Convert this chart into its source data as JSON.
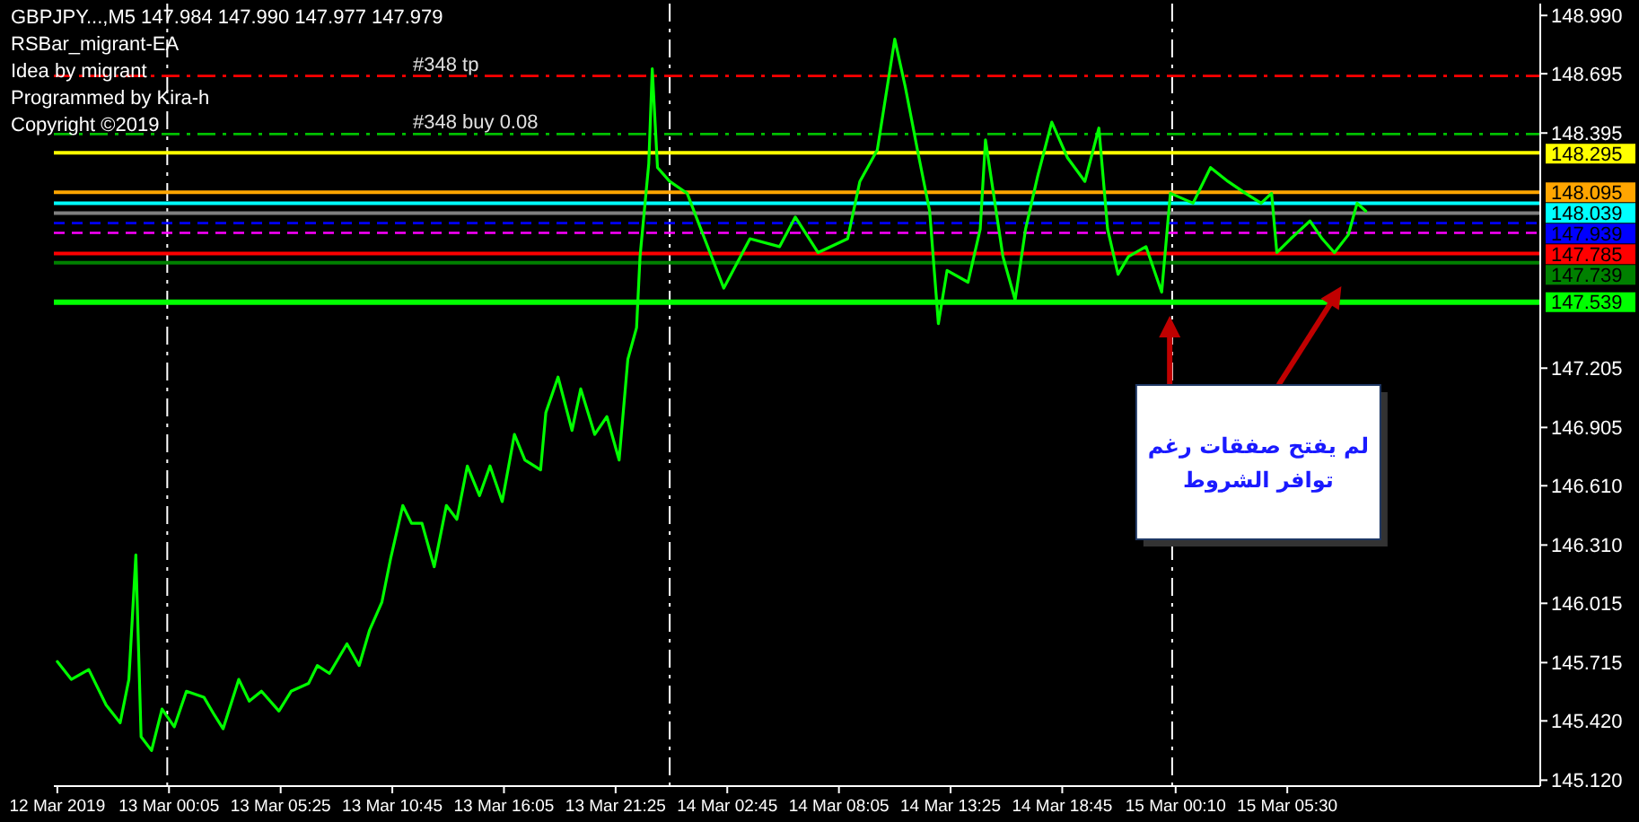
{
  "chart_data": {
    "type": "line",
    "title": "GBPJPY...,M5  147.984 147.990 147.977 147.979",
    "annotations": [
      "RSBar_migrant-EA",
      "Idea by migrant",
      "Programmed by Kira-h",
      "Copyright ©2019",
      "لم يفتح صفقات رغم توافر الشروط"
    ],
    "xlim": [
      "2019-03-12T18:35",
      "2019-03-15T17:35"
    ],
    "xticks": [
      {
        "value": "2019-03-12T18:45",
        "label": "12 Mar 2019"
      },
      {
        "value": "2019-03-13T00:05",
        "label": "13 Mar 00:05"
      },
      {
        "value": "2019-03-13T05:25",
        "label": "13 Mar 05:25"
      },
      {
        "value": "2019-03-13T10:45",
        "label": "13 Mar 10:45"
      },
      {
        "value": "2019-03-13T16:05",
        "label": "13 Mar 16:05"
      },
      {
        "value": "2019-03-13T21:25",
        "label": "13 Mar 21:25"
      },
      {
        "value": "2019-03-14T02:45",
        "label": "14 Mar 02:45"
      },
      {
        "value": "2019-03-14T08:05",
        "label": "14 Mar 08:05"
      },
      {
        "value": "2019-03-14T13:25",
        "label": "14 Mar 13:25"
      },
      {
        "value": "2019-03-14T18:45",
        "label": "14 Mar 18:45"
      },
      {
        "value": "2019-03-15T00:10",
        "label": "15 Mar 00:10"
      },
      {
        "value": "2019-03-15T05:30",
        "label": "15 Mar 05:30"
      }
    ],
    "ylim": [
      145.09,
      149.05
    ],
    "yticks": [
      {
        "value": 148.99,
        "label": "148.990"
      },
      {
        "value": 148.695,
        "label": "148.695"
      },
      {
        "value": 148.395,
        "label": "148.395"
      },
      {
        "value": 147.205,
        "label": "147.205"
      },
      {
        "value": 146.905,
        "label": "146.905"
      },
      {
        "value": 146.61,
        "label": "146.610"
      },
      {
        "value": 146.31,
        "label": "146.310"
      },
      {
        "value": 146.015,
        "label": "146.015"
      },
      {
        "value": 145.715,
        "label": "145.715"
      },
      {
        "value": 145.42,
        "label": "145.420"
      },
      {
        "value": 145.12,
        "label": "145.120"
      }
    ],
    "ref_lines": [
      {
        "axis": "x",
        "value": "2019-03-13T00:00",
        "color": "#ffffff",
        "line_style": "dotted"
      },
      {
        "axis": "x",
        "value": "2019-03-14T00:00",
        "color": "#ffffff",
        "line_style": "dotted"
      },
      {
        "axis": "x",
        "value": "2019-03-15T00:00",
        "color": "#ffffff",
        "line_style": "dotted"
      },
      {
        "axis": "y",
        "value": 148.684,
        "label": "#348 tp",
        "color": "#ff0000",
        "line_style": "dotted"
      },
      {
        "axis": "y",
        "value": 148.39,
        "label": "#348 buy 0.08",
        "color": "#00c000",
        "line_style": "dotted"
      },
      {
        "axis": "y",
        "value": 148.295,
        "label": "148.295",
        "color": "#ffff00",
        "line_style": "solid"
      },
      {
        "axis": "y",
        "value": 148.095,
        "label": "148.095",
        "color": "#ffa500",
        "line_style": "solid"
      },
      {
        "axis": "y",
        "value": 148.039,
        "label": "148.039",
        "color": "#00ffff",
        "line_style": "solid"
      },
      {
        "axis": "y",
        "value": 147.99,
        "color": "#808080",
        "line_style": "solid"
      },
      {
        "axis": "y",
        "value": 147.939,
        "label": "147.939",
        "color": "#0000ff",
        "line_style": "dashed"
      },
      {
        "axis": "y",
        "value": 147.89,
        "color": "#ff00ff",
        "line_style": "dashed"
      },
      {
        "axis": "y",
        "value": 147.785,
        "label": "147.785",
        "color": "#ff0000",
        "line_style": "solid"
      },
      {
        "axis": "y",
        "value": 147.739,
        "label": "147.739",
        "color": "#008000",
        "line_style": "solid"
      },
      {
        "axis": "y",
        "value": 147.539,
        "label": "147.539",
        "color": "#00ff00",
        "line_style": "solid"
      }
    ],
    "series": [
      {
        "color": "#00ff00",
        "x": [
          "2019-03-12T18:45",
          "2019-03-12T19:25",
          "2019-03-12T20:15",
          "2019-03-12T21:05",
          "2019-03-12T21:45",
          "2019-03-12T22:10",
          "2019-03-12T22:30",
          "2019-03-12T22:45",
          "2019-03-12T23:15",
          "2019-03-12T23:45",
          "2019-03-13T00:20",
          "2019-03-13T00:55",
          "2019-03-13T01:45",
          "2019-03-13T02:15",
          "2019-03-13T02:40",
          "2019-03-13T03:25",
          "2019-03-13T03:55",
          "2019-03-13T04:30",
          "2019-03-13T05:20",
          "2019-03-13T05:55",
          "2019-03-13T06:45",
          "2019-03-13T07:10",
          "2019-03-13T07:45",
          "2019-03-13T08:35",
          "2019-03-13T09:10",
          "2019-03-13T09:40",
          "2019-03-13T10:15",
          "2019-03-13T10:40",
          "2019-03-13T11:15",
          "2019-03-13T11:40",
          "2019-03-13T12:10",
          "2019-03-13T12:45",
          "2019-03-13T13:20",
          "2019-03-13T13:50",
          "2019-03-13T14:20",
          "2019-03-13T14:55",
          "2019-03-13T15:25",
          "2019-03-13T16:00",
          "2019-03-13T16:35",
          "2019-03-13T17:05",
          "2019-03-13T17:50",
          "2019-03-13T18:05",
          "2019-03-13T18:40",
          "2019-03-13T19:20",
          "2019-03-13T19:45",
          "2019-03-13T20:25",
          "2019-03-13T21:00",
          "2019-03-13T21:35",
          "2019-03-13T22:00",
          "2019-03-13T22:25",
          "2019-03-13T22:35",
          "2019-03-13T23:00",
          "2019-03-13T23:10",
          "2019-03-13T23:25",
          "2019-03-14T00:00",
          "2019-03-14T00:50",
          "2019-03-14T01:40",
          "2019-03-14T02:35",
          "2019-03-14T03:50",
          "2019-03-14T05:15",
          "2019-03-14T06:00",
          "2019-03-14T07:05",
          "2019-03-14T08:30",
          "2019-03-14T09:05",
          "2019-03-14T09:55",
          "2019-03-14T10:45",
          "2019-03-14T11:15",
          "2019-03-14T11:50",
          "2019-03-14T12:25",
          "2019-03-14T12:50",
          "2019-03-14T13:15",
          "2019-03-14T14:15",
          "2019-03-14T14:50",
          "2019-03-14T15:05",
          "2019-03-14T15:55",
          "2019-03-14T16:30",
          "2019-03-14T17:00",
          "2019-03-14T17:35",
          "2019-03-14T18:15",
          "2019-03-14T19:00",
          "2019-03-14T19:50",
          "2019-03-14T20:30",
          "2019-03-14T20:55",
          "2019-03-14T21:25",
          "2019-03-14T21:55",
          "2019-03-14T22:45",
          "2019-03-14T23:30",
          "2019-03-14T23:55",
          "2019-03-15T01:00",
          "2019-03-15T01:50",
          "2019-03-15T02:40",
          "2019-03-15T03:30",
          "2019-03-15T04:15",
          "2019-03-15T04:45",
          "2019-03-15T05:00",
          "2019-03-15T05:40",
          "2019-03-15T06:35",
          "2019-03-15T07:10",
          "2019-03-15T07:45",
          "2019-03-15T08:25",
          "2019-03-15T08:50",
          "2019-03-15T09:15"
        ],
        "values": [
          145.72,
          145.63,
          145.68,
          145.5,
          145.41,
          145.63,
          146.26,
          145.34,
          145.27,
          145.48,
          145.39,
          145.57,
          145.54,
          145.45,
          145.38,
          145.63,
          145.52,
          145.57,
          145.47,
          145.57,
          145.61,
          145.7,
          145.66,
          145.81,
          145.7,
          145.88,
          146.02,
          146.24,
          146.51,
          146.42,
          146.42,
          146.2,
          146.51,
          146.44,
          146.71,
          146.56,
          146.71,
          146.53,
          146.87,
          146.74,
          146.69,
          146.98,
          147.16,
          146.89,
          147.1,
          146.87,
          146.96,
          146.74,
          147.25,
          147.41,
          147.77,
          148.24,
          148.72,
          148.22,
          148.15,
          148.09,
          147.86,
          147.61,
          147.86,
          147.82,
          147.97,
          147.79,
          147.86,
          148.15,
          148.31,
          148.87,
          148.63,
          148.31,
          148,
          147.43,
          147.7,
          147.64,
          147.91,
          148.36,
          147.77,
          147.55,
          147.91,
          148.18,
          148.45,
          148.27,
          148.15,
          148.42,
          147.91,
          147.68,
          147.77,
          147.82,
          147.59,
          148.09,
          148.04,
          148.22,
          148.15,
          148.09,
          148.04,
          148.09,
          147.79,
          147.86,
          147.95,
          147.86,
          147.79,
          147.88,
          148.04,
          148
        ]
      }
    ]
  }
}
